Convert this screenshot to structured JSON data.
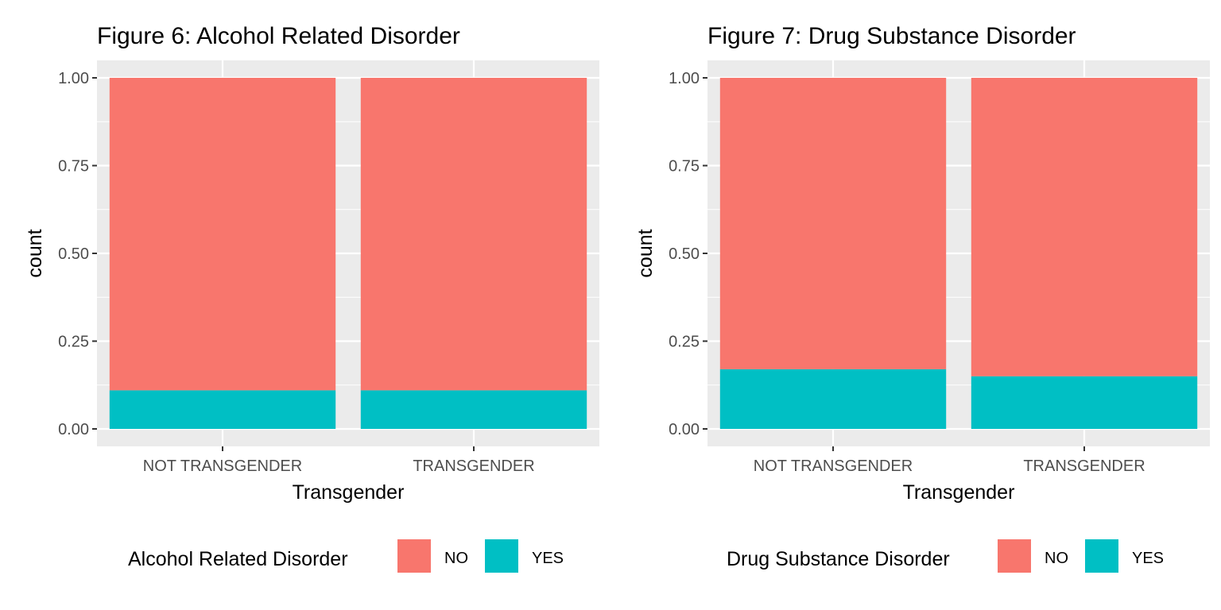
{
  "chart_data": [
    {
      "type": "bar",
      "stacked": true,
      "title": "Figure 6: Alcohol Related Disorder",
      "xlabel": "Transgender",
      "ylabel": "count",
      "categories": [
        "NOT TRANSGENDER",
        "TRANSGENDER"
      ],
      "series": [
        {
          "name": "NO",
          "color": "#F8766D",
          "values": [
            0.89,
            0.89
          ]
        },
        {
          "name": "YES",
          "color": "#00BFC4",
          "values": [
            0.11,
            0.11
          ]
        }
      ],
      "ylim": [
        0,
        1
      ],
      "yticks": [
        "0.00",
        "0.25",
        "0.50",
        "0.75",
        "1.00"
      ],
      "grid": true,
      "legend": {
        "title": "Alcohol Related Disorder",
        "position": "bottom",
        "entries": [
          "NO",
          "YES"
        ]
      }
    },
    {
      "type": "bar",
      "stacked": true,
      "title": "Figure 7: Drug Substance Disorder",
      "xlabel": "Transgender",
      "ylabel": "count",
      "categories": [
        "NOT TRANSGENDER",
        "TRANSGENDER"
      ],
      "series": [
        {
          "name": "NO",
          "color": "#F8766D",
          "values": [
            0.83,
            0.85
          ]
        },
        {
          "name": "YES",
          "color": "#00BFC4",
          "values": [
            0.17,
            0.15
          ]
        }
      ],
      "ylim": [
        0,
        1
      ],
      "yticks": [
        "0.00",
        "0.25",
        "0.50",
        "0.75",
        "1.00"
      ],
      "grid": true,
      "legend": {
        "title": "Drug Substance Disorder",
        "position": "bottom",
        "entries": [
          "NO",
          "YES"
        ]
      }
    }
  ]
}
